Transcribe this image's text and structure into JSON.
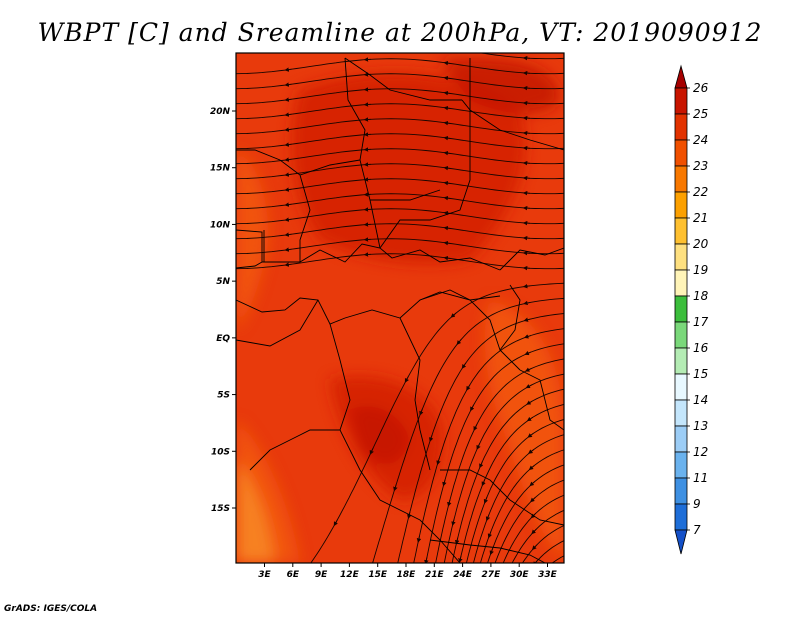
{
  "title": "WBPT [C] and Sreamline at 200hPa, VT: 2019090912",
  "credit": "GrADS: IGES/COLA",
  "map": {
    "lat_labels": [
      "20N",
      "15N",
      "10N",
      "5N",
      "EQ",
      "5S",
      "10S",
      "15S"
    ],
    "lon_labels": [
      "3E",
      "6E",
      "9E",
      "12E",
      "15E",
      "18E",
      "21E",
      "24E",
      "27E",
      "30E",
      "33E"
    ],
    "field_colors": {
      "background": "#e83a0c",
      "warm": "#d42006",
      "hot": "#c41402",
      "cool": "#f25812",
      "coolest": "#f88a24"
    },
    "streamline_color": "#1a0500",
    "border_color": "#000000"
  },
  "colorbar": {
    "levels": [
      "26",
      "25",
      "24",
      "23",
      "22",
      "21",
      "20",
      "19",
      "18",
      "17",
      "16",
      "15",
      "14",
      "13",
      "12",
      "11",
      "9",
      "7"
    ],
    "colors": [
      "#a50000",
      "#c81500",
      "#e23200",
      "#f05000",
      "#f87800",
      "#fca000",
      "#fec030",
      "#fee080",
      "#fff4b8",
      "#3cbe3c",
      "#7ad87a",
      "#b4ecb4",
      "#e8f8ff",
      "#c4e6fc",
      "#9ccdf6",
      "#6ab2ee",
      "#3e90e2",
      "#1e6ed8",
      "#1450c8"
    ]
  }
}
